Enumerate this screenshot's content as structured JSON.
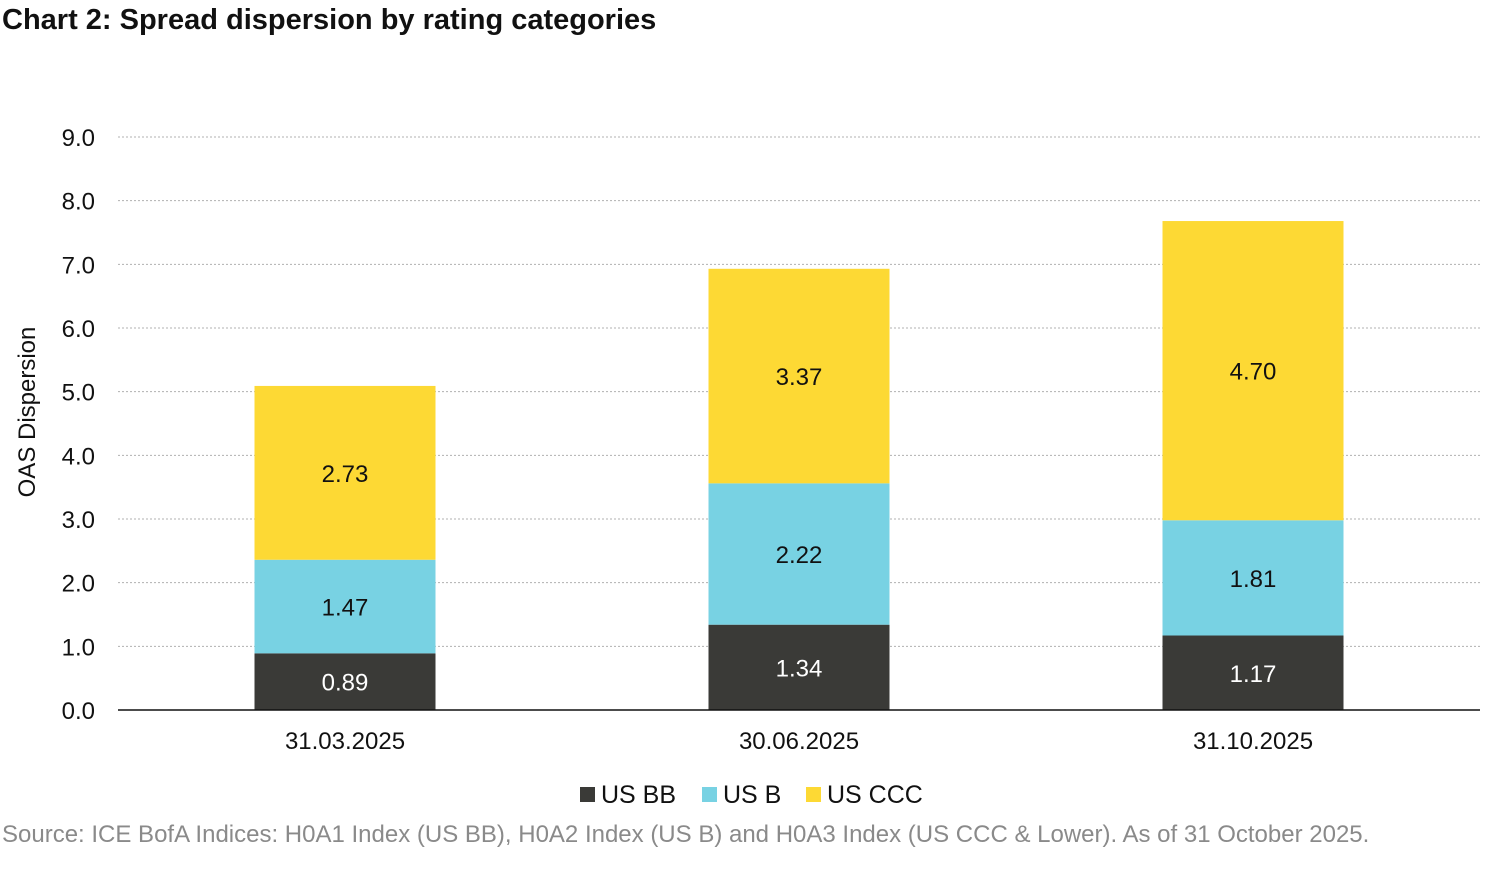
{
  "chart_data": {
    "type": "bar",
    "stacked": true,
    "title": "Chart 2: Spread dispersion by rating categories",
    "xlabel": "",
    "ylabel": "OAS Dispersion",
    "ylim": [
      0,
      9
    ],
    "yticks": [
      "0.0",
      "1.0",
      "2.0",
      "3.0",
      "4.0",
      "5.0",
      "6.0",
      "7.0",
      "8.0",
      "9.0"
    ],
    "grid": true,
    "legend_position": "bottom",
    "categories": [
      "31.03.2025",
      "30.06.2025",
      "31.10.2025"
    ],
    "series": [
      {
        "name": "US BB",
        "color": "#3a3a37",
        "label_color": "#ffffff",
        "values": [
          0.89,
          1.34,
          1.17
        ],
        "labels": [
          "0.89",
          "1.34",
          "1.17"
        ]
      },
      {
        "name": "US B",
        "color": "#78d2e3",
        "label_color": "#111111",
        "values": [
          1.47,
          2.22,
          1.81
        ],
        "labels": [
          "1.47",
          "2.22",
          "1.81"
        ]
      },
      {
        "name": "US CCC",
        "color": "#fdd934",
        "label_color": "#111111",
        "values": [
          2.73,
          3.37,
          4.7
        ],
        "labels": [
          "2.73",
          "3.37",
          "4.70"
        ]
      }
    ],
    "source": "Source: ICE BofA Indices: H0A1 Index (US BB), H0A2 Index (US B) and H0A3 Index (US CCC & Lower). As of 31 October 2025."
  }
}
